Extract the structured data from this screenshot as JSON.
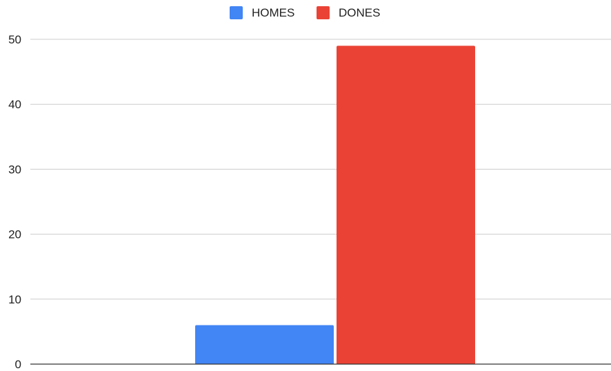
{
  "chart_data": {
    "type": "bar",
    "categories": [
      ""
    ],
    "series": [
      {
        "name": "HOMES",
        "values": [
          6
        ],
        "color": "#4285F4"
      },
      {
        "name": "DONES",
        "values": [
          49
        ],
        "color": "#EA4335"
      }
    ],
    "title": "",
    "xlabel": "",
    "ylabel": "",
    "ylim": [
      0,
      50
    ],
    "yticks": [
      "0",
      "10",
      "20",
      "30",
      "40",
      "50"
    ],
    "grid": true,
    "legend_position": "top-center"
  }
}
